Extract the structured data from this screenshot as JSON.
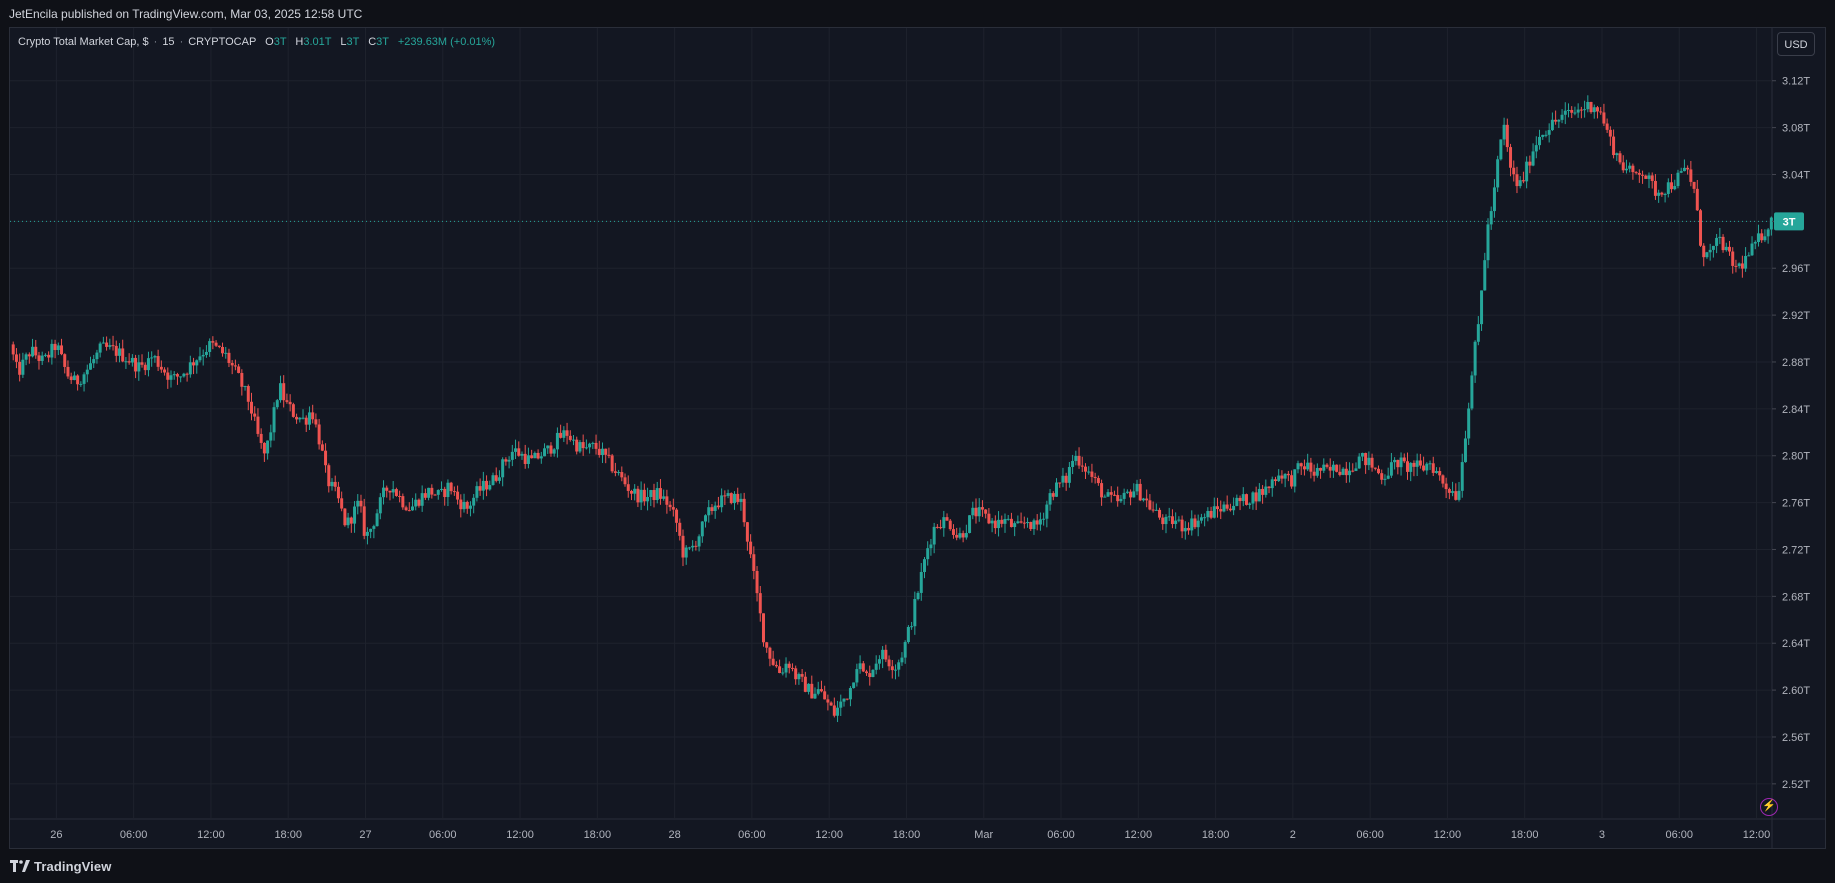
{
  "header": {
    "published_line": "JetEncila published on TradingView.com, Mar 03, 2025 12:58 UTC"
  },
  "legend": {
    "symbol": "Crypto Total Market Cap, $",
    "interval": "15",
    "exchange": "CRYPTOCAP",
    "open_label": "O",
    "open_value": "3T",
    "high_label": "H",
    "high_value": "3.01T",
    "low_label": "L",
    "low_value": "3T",
    "close_label": "C",
    "close_value": "3T",
    "change": "+239.63M (+0.01%)"
  },
  "currency_button": "USD",
  "last_price_label": "3T",
  "footer": {
    "brand": "TradingView"
  },
  "colors": {
    "up": "#26a69a",
    "down": "#ef5350",
    "grid": "#1e222d",
    "background": "#131722",
    "price_line": "#26a69a"
  },
  "chart_data": {
    "type": "candlestick",
    "title": "Crypto Total Market Cap, $ · 15 · CRYPTOCAP",
    "y_unit": "T",
    "ylim": [
      2.49,
      3.165
    ],
    "y_ticks": [
      "3.12T",
      "3.08T",
      "3.04T",
      "3.00T",
      "2.96T",
      "2.92T",
      "2.88T",
      "2.84T",
      "2.80T",
      "2.76T",
      "2.72T",
      "2.68T",
      "2.64T",
      "2.60T",
      "2.56T",
      "2.52T"
    ],
    "x_ticks": [
      "26",
      "06:00",
      "12:00",
      "18:00",
      "27",
      "06:00",
      "12:00",
      "18:00",
      "28",
      "06:00",
      "12:00",
      "18:00",
      "Mar",
      "06:00",
      "12:00",
      "18:00",
      "2",
      "06:00",
      "12:00",
      "18:00",
      "3",
      "06:00",
      "12:00"
    ],
    "x_tick_hours": [
      0,
      6,
      12,
      18,
      24,
      30,
      36,
      42,
      48,
      54,
      60,
      66,
      72,
      78,
      84,
      90,
      96,
      102,
      108,
      114,
      120,
      126,
      132
    ],
    "x_range_hours": [
      -3.6,
      133.2
    ],
    "last_price": 3.0,
    "close_path": [
      [
        -3.6,
        2.895
      ],
      [
        -3.0,
        2.87
      ],
      [
        -2.0,
        2.89
      ],
      [
        -1.0,
        2.88
      ],
      [
        0,
        2.895
      ],
      [
        0.8,
        2.87
      ],
      [
        1.5,
        2.862
      ],
      [
        2.5,
        2.875
      ],
      [
        3.5,
        2.892
      ],
      [
        4.5,
        2.89
      ],
      [
        5.5,
        2.883
      ],
      [
        6.5,
        2.875
      ],
      [
        7.5,
        2.885
      ],
      [
        8.2,
        2.875
      ],
      [
        9,
        2.865
      ],
      [
        10,
        2.872
      ],
      [
        11,
        2.885
      ],
      [
        12,
        2.895
      ],
      [
        13.2,
        2.885
      ],
      [
        14.2,
        2.865
      ],
      [
        15,
        2.845
      ],
      [
        15.8,
        2.81
      ],
      [
        16.2,
        2.8
      ],
      [
        16.8,
        2.83
      ],
      [
        17.3,
        2.86
      ],
      [
        17.8,
        2.845
      ],
      [
        18.5,
        2.835
      ],
      [
        19.3,
        2.83
      ],
      [
        19.8,
        2.84
      ],
      [
        20.5,
        2.81
      ],
      [
        21,
        2.78
      ],
      [
        21.8,
        2.765
      ],
      [
        22.5,
        2.74
      ],
      [
        23,
        2.75
      ],
      [
        23.5,
        2.76
      ],
      [
        24,
        2.73
      ],
      [
        24.5,
        2.74
      ],
      [
        25,
        2.755
      ],
      [
        25.5,
        2.77
      ],
      [
        26,
        2.775
      ],
      [
        26.8,
        2.762
      ],
      [
        27.5,
        2.755
      ],
      [
        28.3,
        2.765
      ],
      [
        29,
        2.77
      ],
      [
        29.8,
        2.765
      ],
      [
        30.5,
        2.775
      ],
      [
        31.2,
        2.762
      ],
      [
        31.9,
        2.755
      ],
      [
        32.6,
        2.768
      ],
      [
        33.3,
        2.775
      ],
      [
        34,
        2.78
      ],
      [
        34.8,
        2.795
      ],
      [
        35.5,
        2.805
      ],
      [
        36.2,
        2.8
      ],
      [
        36.9,
        2.795
      ],
      [
        37.5,
        2.8
      ],
      [
        38.2,
        2.805
      ],
      [
        39,
        2.815
      ],
      [
        39.6,
        2.82
      ],
      [
        40.3,
        2.81
      ],
      [
        41,
        2.805
      ],
      [
        41.8,
        2.808
      ],
      [
        42.5,
        2.8
      ],
      [
        43.2,
        2.79
      ],
      [
        43.9,
        2.78
      ],
      [
        44.6,
        2.77
      ],
      [
        45.3,
        2.765
      ],
      [
        46,
        2.765
      ],
      [
        46.7,
        2.768
      ],
      [
        47.4,
        2.76
      ],
      [
        48.1,
        2.745
      ],
      [
        48.7,
        2.715
      ],
      [
        49.3,
        2.72
      ],
      [
        50,
        2.735
      ],
      [
        50.6,
        2.75
      ],
      [
        51.2,
        2.76
      ],
      [
        51.8,
        2.762
      ],
      [
        52.5,
        2.765
      ],
      [
        53.2,
        2.76
      ],
      [
        53.8,
        2.72
      ],
      [
        54.4,
        2.68
      ],
      [
        55,
        2.64
      ],
      [
        55.6,
        2.625
      ],
      [
        56.2,
        2.615
      ],
      [
        56.8,
        2.625
      ],
      [
        57.4,
        2.612
      ],
      [
        58,
        2.605
      ],
      [
        58.6,
        2.598
      ],
      [
        59.2,
        2.6
      ],
      [
        59.8,
        2.59
      ],
      [
        60.4,
        2.58
      ],
      [
        61,
        2.59
      ],
      [
        61.6,
        2.6
      ],
      [
        62.2,
        2.625
      ],
      [
        62.8,
        2.61
      ],
      [
        63.4,
        2.62
      ],
      [
        64,
        2.632
      ],
      [
        64.6,
        2.625
      ],
      [
        65.2,
        2.62
      ],
      [
        65.8,
        2.635
      ],
      [
        66.4,
        2.66
      ],
      [
        67,
        2.69
      ],
      [
        67.6,
        2.72
      ],
      [
        68.2,
        2.74
      ],
      [
        68.8,
        2.745
      ],
      [
        69.4,
        2.742
      ],
      [
        70,
        2.73
      ],
      [
        70.6,
        2.738
      ],
      [
        71.2,
        2.752
      ],
      [
        71.8,
        2.75
      ],
      [
        72.4,
        2.745
      ],
      [
        73,
        2.742
      ],
      [
        73.6,
        2.745
      ],
      [
        74.2,
        2.74
      ],
      [
        74.8,
        2.738
      ],
      [
        75.4,
        2.745
      ],
      [
        76,
        2.738
      ],
      [
        76.6,
        2.75
      ],
      [
        77.2,
        2.768
      ],
      [
        77.8,
        2.775
      ],
      [
        78.4,
        2.78
      ],
      [
        79,
        2.8
      ],
      [
        79.6,
        2.795
      ],
      [
        80.2,
        2.785
      ],
      [
        80.8,
        2.775
      ],
      [
        81.4,
        2.765
      ],
      [
        82,
        2.762
      ],
      [
        82.6,
        2.76
      ],
      [
        83.2,
        2.768
      ],
      [
        83.8,
        2.772
      ],
      [
        84.4,
        2.765
      ],
      [
        85,
        2.755
      ],
      [
        85.6,
        2.748
      ],
      [
        86.2,
        2.742
      ],
      [
        86.8,
        2.745
      ],
      [
        87.4,
        2.74
      ],
      [
        88,
        2.742
      ],
      [
        88.6,
        2.745
      ],
      [
        89.2,
        2.748
      ],
      [
        89.8,
        2.752
      ],
      [
        90.4,
        2.755
      ],
      [
        91,
        2.758
      ],
      [
        91.6,
        2.76
      ],
      [
        92.2,
        2.762
      ],
      [
        92.8,
        2.765
      ],
      [
        93.4,
        2.768
      ],
      [
        94,
        2.772
      ],
      [
        94.6,
        2.782
      ],
      [
        95.2,
        2.785
      ],
      [
        95.8,
        2.778
      ],
      [
        96.4,
        2.788
      ],
      [
        97,
        2.792
      ],
      [
        97.6,
        2.785
      ],
      [
        98.2,
        2.788
      ],
      [
        98.8,
        2.786
      ],
      [
        99.4,
        2.79
      ],
      [
        100,
        2.788
      ],
      [
        100.6,
        2.792
      ],
      [
        101.2,
        2.798
      ],
      [
        101.8,
        2.795
      ],
      [
        102.4,
        2.788
      ],
      [
        103,
        2.782
      ],
      [
        103.6,
        2.79
      ],
      [
        104.2,
        2.795
      ],
      [
        104.8,
        2.79
      ],
      [
        105.4,
        2.792
      ],
      [
        106,
        2.788
      ],
      [
        106.6,
        2.795
      ],
      [
        107.2,
        2.785
      ],
      [
        107.8,
        2.775
      ],
      [
        108.4,
        2.77
      ],
      [
        108.8,
        2.765
      ],
      [
        109.2,
        2.8
      ],
      [
        109.6,
        2.84
      ],
      [
        110,
        2.88
      ],
      [
        110.4,
        2.91
      ],
      [
        110.8,
        2.96
      ],
      [
        111.2,
        3.0
      ],
      [
        111.6,
        3.02
      ],
      [
        112,
        3.06
      ],
      [
        112.4,
        3.08
      ],
      [
        112.8,
        3.05
      ],
      [
        113.2,
        3.035
      ],
      [
        113.6,
        3.03
      ],
      [
        114,
        3.04
      ],
      [
        114.6,
        3.06
      ],
      [
        115.2,
        3.075
      ],
      [
        115.8,
        3.08
      ],
      [
        116.4,
        3.085
      ],
      [
        117,
        3.09
      ],
      [
        117.6,
        3.092
      ],
      [
        118.2,
        3.095
      ],
      [
        118.8,
        3.098
      ],
      [
        119.4,
        3.1
      ],
      [
        120,
        3.09
      ],
      [
        120.6,
        3.07
      ],
      [
        121.2,
        3.055
      ],
      [
        121.8,
        3.045
      ],
      [
        122.4,
        3.04
      ],
      [
        123,
        3.045
      ],
      [
        123.6,
        3.035
      ],
      [
        124.2,
        3.025
      ],
      [
        124.8,
        3.028
      ],
      [
        125.4,
        3.032
      ],
      [
        126,
        3.038
      ],
      [
        126.6,
        3.045
      ],
      [
        127.2,
        3.025
      ],
      [
        127.6,
        2.985
      ],
      [
        128,
        2.97
      ],
      [
        128.6,
        2.975
      ],
      [
        129.2,
        2.985
      ],
      [
        129.8,
        2.97
      ],
      [
        130.4,
        2.96
      ],
      [
        131,
        2.965
      ],
      [
        131.6,
        2.975
      ],
      [
        132.2,
        2.985
      ],
      [
        132.8,
        2.995
      ],
      [
        133.2,
        3.0
      ]
    ]
  }
}
